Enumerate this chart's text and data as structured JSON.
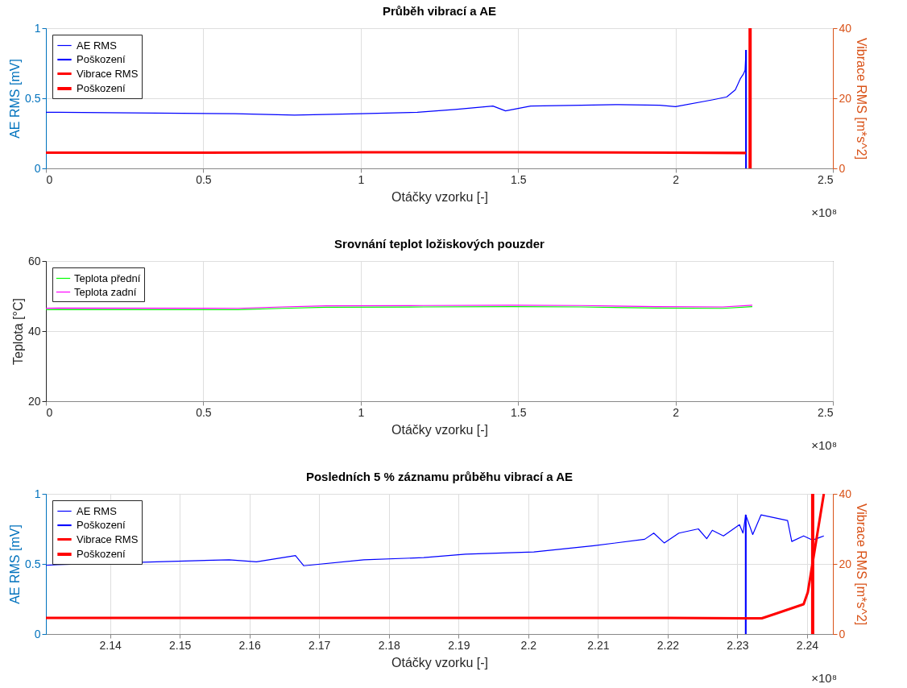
{
  "chart_data": [
    {
      "type": "line",
      "title": "Průběh vibrací a AE",
      "xlabel": "Otáčky vzorku [-]",
      "ylabel": "AE RMS  [mV]",
      "y2label": "Vibrace RMS  [m*s^2]",
      "xlim": [
        0,
        2.5
      ],
      "xticks": [
        0,
        0.5,
        1,
        1.5,
        2,
        2.5
      ],
      "ylim": [
        0,
        1
      ],
      "yticks": [
        0,
        0.5,
        1
      ],
      "y2lim": [
        0,
        40
      ],
      "y2ticks": [
        0,
        20,
        40
      ],
      "grid": true,
      "legend": "top left",
      "annotations": [
        "×10⁸"
      ],
      "series": [
        {
          "name": "AE RMS",
          "color": "#0000ff",
          "axis": "y",
          "x": [
            0,
            0.04,
            0.6,
            0.79,
            1.0,
            1.18,
            1.3,
            1.42,
            1.46,
            1.54,
            1.7,
            1.82,
            1.95,
            2.0,
            2.12,
            2.163,
            2.19,
            2.206,
            2.215,
            2.221,
            2.224
          ],
          "values": [
            0.4,
            0.4,
            0.39,
            0.38,
            0.39,
            0.4,
            0.42,
            0.445,
            0.41,
            0.445,
            0.45,
            0.455,
            0.45,
            0.44,
            0.49,
            0.51,
            0.56,
            0.64,
            0.67,
            0.7,
            0.845
          ]
        },
        {
          "name": "Poškození",
          "color": "#0000ff",
          "axis": "y",
          "x": [
            2.224,
            2.224
          ],
          "values": [
            0,
            0.845
          ]
        },
        {
          "name": "Vibrace RMS",
          "color": "#ff0000",
          "axis": "y2",
          "x": [
            0,
            0.5,
            1,
            1.5,
            2,
            2.224
          ],
          "values": [
            4.5,
            4.5,
            4.6,
            4.6,
            4.5,
            4.4
          ]
        },
        {
          "name": "Poškození",
          "color": "#ff0000",
          "axis": "y2",
          "x": [
            2.237,
            2.237
          ],
          "values": [
            0,
            40
          ]
        }
      ]
    },
    {
      "type": "line",
      "title": "Srovnání teplot ložiskových pouzder",
      "xlabel": "Otáčky vzorku [-]",
      "ylabel": "Teplota  [°C]",
      "xlim": [
        0,
        2.5
      ],
      "xticks": [
        0,
        0.5,
        1,
        1.5,
        2,
        2.5
      ],
      "ylim": [
        20,
        60
      ],
      "yticks": [
        20,
        40,
        60
      ],
      "grid": true,
      "legend": "top left",
      "annotations": [
        "×10⁸"
      ],
      "series": [
        {
          "name": "Teplota přední",
          "color": "#00ff00",
          "x": [
            0,
            0.04,
            0.61,
            0.75,
            0.89,
            1.2,
            1.48,
            1.7,
            1.94,
            2.15,
            2.244
          ],
          "values": [
            46.1,
            46.2,
            46.1,
            46.5,
            46.8,
            46.9,
            47.0,
            46.9,
            46.6,
            46.5,
            47.0
          ]
        },
        {
          "name": "Teplota zadní",
          "color": "#ff00ff",
          "x": [
            0,
            0.04,
            0.61,
            0.75,
            0.89,
            1.2,
            1.48,
            1.7,
            1.94,
            2.15,
            2.244
          ],
          "values": [
            46.5,
            46.6,
            46.5,
            46.9,
            47.2,
            47.3,
            47.4,
            47.3,
            47.0,
            46.9,
            47.4
          ]
        }
      ]
    },
    {
      "type": "line",
      "title": "Posledních 5 % záznamu průběhu vibrací a AE",
      "xlabel": "Otáčky vzorku [-]",
      "ylabel": "AE RMS  [mV]",
      "y2label": "Vibrace RMS  [m*s^2]",
      "xlim": [
        2.1308,
        2.2437
      ],
      "xticks": [
        2.14,
        2.15,
        2.16,
        2.17,
        2.18,
        2.19,
        2.2,
        2.21,
        2.22,
        2.23,
        2.24
      ],
      "ylim": [
        0,
        1
      ],
      "yticks": [
        0,
        0.5,
        1
      ],
      "y2lim": [
        0,
        40
      ],
      "y2ticks": [
        0,
        20,
        40
      ],
      "grid": true,
      "legend": "top left",
      "annotations": [
        "×10⁸"
      ],
      "series": [
        {
          "name": "AE RMS",
          "color": "#0000ff",
          "axis": "y",
          "x": [
            2.1308,
            2.1325,
            2.1571,
            2.161,
            2.1666,
            2.1678,
            2.1764,
            2.185,
            2.191,
            2.2008,
            2.2094,
            2.2167,
            2.218,
            2.2195,
            2.2216,
            2.2244,
            2.2256,
            2.2264,
            2.228,
            2.2303,
            2.2308,
            2.2312,
            2.2322,
            2.2334,
            2.2372,
            2.2378,
            2.2395,
            2.2408,
            2.2424
          ],
          "values": [
            0.49,
            0.495,
            0.53,
            0.515,
            0.56,
            0.487,
            0.53,
            0.545,
            0.57,
            0.585,
            0.63,
            0.676,
            0.72,
            0.65,
            0.72,
            0.75,
            0.68,
            0.74,
            0.7,
            0.78,
            0.72,
            0.85,
            0.71,
            0.85,
            0.81,
            0.66,
            0.7,
            0.67,
            0.7
          ]
        },
        {
          "name": "Poškození",
          "color": "#0000ff",
          "axis": "y",
          "x": [
            2.2312,
            2.2312
          ],
          "values": [
            0,
            0.85
          ]
        },
        {
          "name": "Vibrace RMS",
          "color": "#ff0000",
          "axis": "y2",
          "x": [
            2.1308,
            2.16,
            2.19,
            2.22,
            2.2312,
            2.2335,
            2.2355,
            2.2395,
            2.2401,
            2.2424
          ],
          "values": [
            4.6,
            4.6,
            4.6,
            4.6,
            4.5,
            4.5,
            5.8,
            8.5,
            11.9,
            40
          ]
        },
        {
          "name": "Poškození",
          "color": "#ff0000",
          "axis": "y2",
          "x": [
            2.2408,
            2.2408
          ],
          "values": [
            0,
            40
          ]
        }
      ]
    }
  ]
}
